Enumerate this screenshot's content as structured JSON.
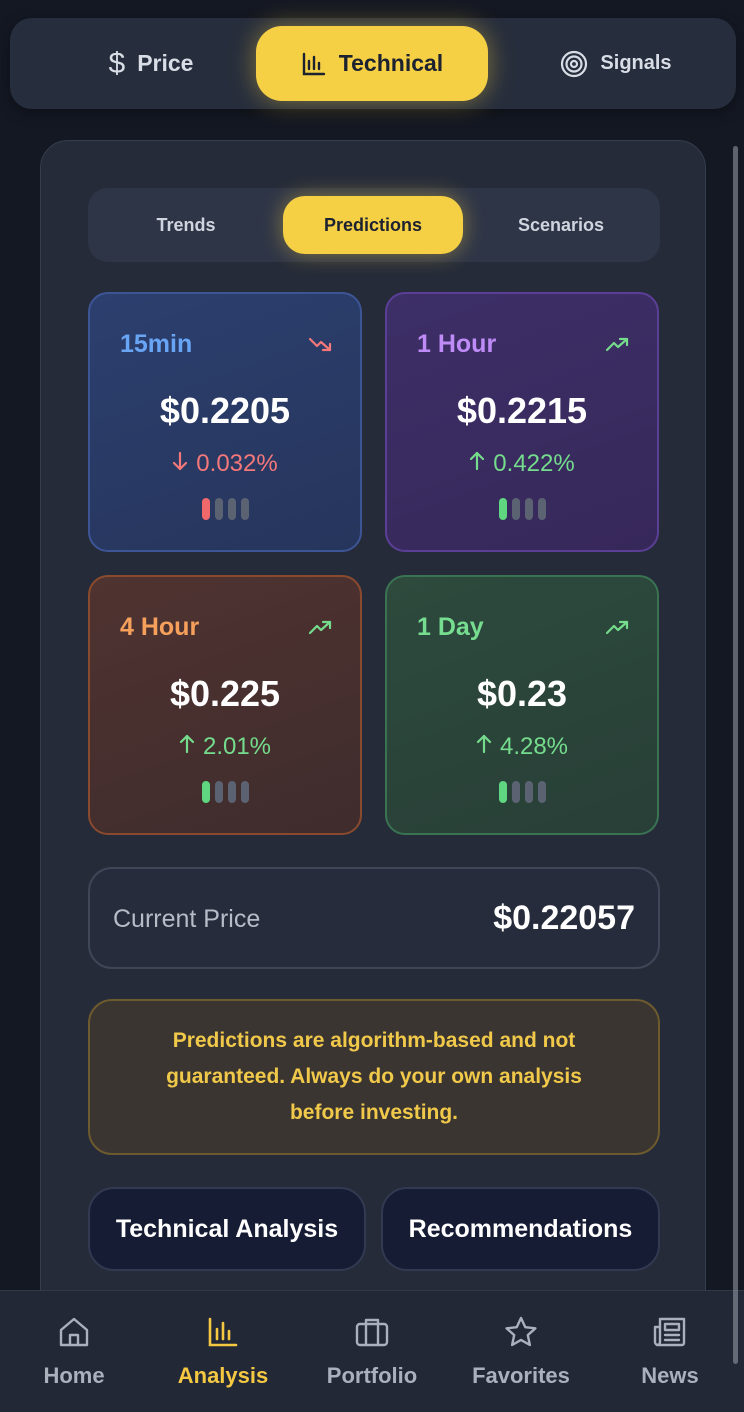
{
  "top_tabs": {
    "price": "Price",
    "technical": "Technical",
    "signals": "Signals"
  },
  "sub_tabs": {
    "trends": "Trends",
    "predictions": "Predictions",
    "scenarios": "Scenarios"
  },
  "predictions": [
    {
      "label": "15min",
      "price": "$0.2205",
      "change": "0.032%",
      "direction": "down",
      "confidence_level": 1,
      "accent": "#69a5f5"
    },
    {
      "label": "1 Hour",
      "price": "$0.2215",
      "change": "0.422%",
      "direction": "up",
      "confidence_level": 1,
      "accent": "#bf8cf7"
    },
    {
      "label": "4 Hour",
      "price": "$0.225",
      "change": "2.01%",
      "direction": "up",
      "confidence_level": 1,
      "accent": "#f6a05c"
    },
    {
      "label": "1 Day",
      "price": "$0.23",
      "change": "4.28%",
      "direction": "up",
      "confidence_level": 1,
      "accent": "#76dc8f"
    }
  ],
  "current_price": {
    "label": "Current Price",
    "value": "$0.22057"
  },
  "disclaimer": "Predictions are algorithm-based and not guaranteed. Always do your own analysis before investing.",
  "actions": {
    "technical_analysis": "Technical Analysis",
    "recommendations": "Recommendations"
  },
  "bottom_nav": {
    "home": "Home",
    "analysis": "Analysis",
    "portfolio": "Portfolio",
    "favorites": "Favorites",
    "news": "News"
  },
  "colors": {
    "accent": "#f5cf44",
    "up": "#74dc8c",
    "down": "#f4787a"
  }
}
